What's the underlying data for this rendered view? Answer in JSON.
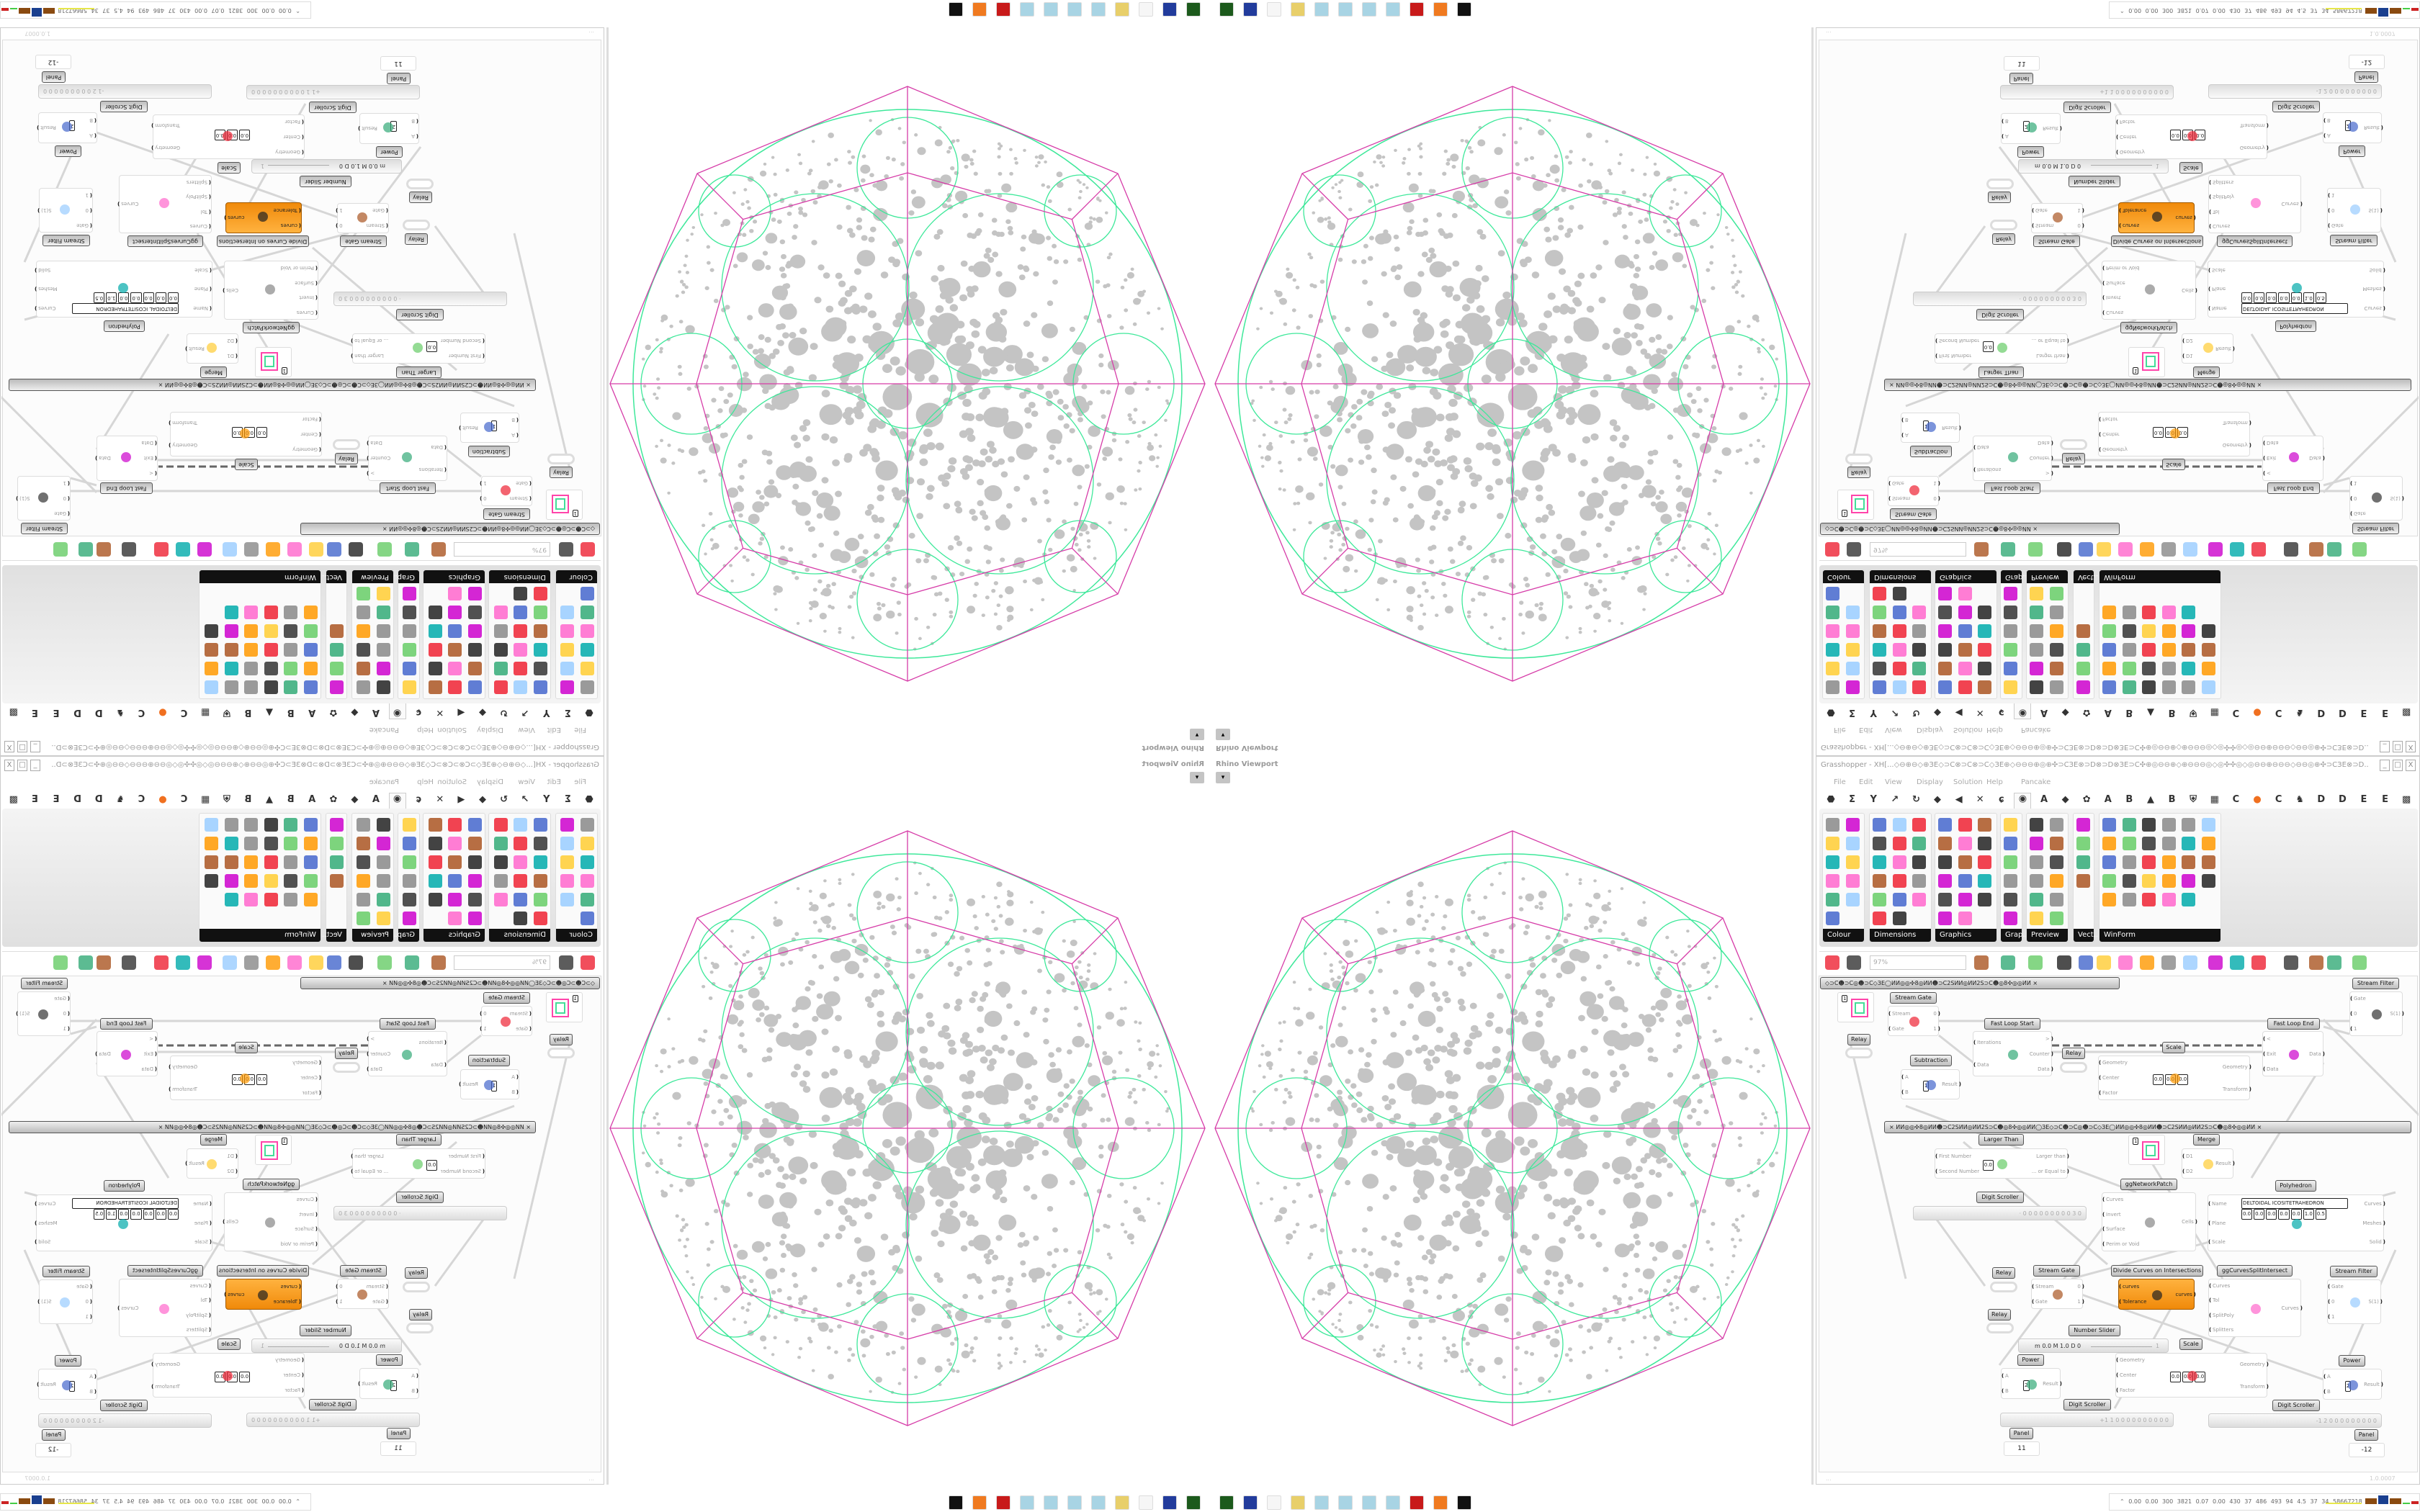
{
  "viewport": {
    "title": "Rhino Viewport",
    "dropdown_icon": "triangle-down"
  },
  "grasshopper": {
    "title": "Grasshopper - XH[...◇⊖⊕⊖◇⊕ЗЕ◇⊃C⊗⊃C⊗⊃C◇ЗЕ⊕◇⊖⊖⊖⊕◎⊕✣⊃CЗЕ⊗⊃D⊗⊃D⊗ЗЕ⊃C✣⊕◎⊖⊖⊕◇⊕⊖⊖⊖◎◇◎✣✣◎◇◎⊖⊖⊕⊖⊖⊖◇⊖⊖◎⊕✣⊃CЗЕ⊗⊃D...",
    "window_buttons": [
      "_",
      "□",
      "X"
    ],
    "menu": [
      "File",
      "Edit",
      "View",
      "Display",
      "Solution",
      "Help",
      "Pancake"
    ],
    "tabs": [
      "⬣",
      "Σ",
      "Y",
      "↗",
      "↻",
      "◆",
      "◀",
      "✕",
      "ɕ",
      "◉",
      "A",
      "◆",
      "✿",
      "A",
      "B",
      "▲",
      "B",
      "⛨",
      "▦",
      "C",
      "●",
      "C",
      "♞",
      "D",
      "D",
      "E",
      "E",
      "▩"
    ],
    "palette": [
      {
        "label": "Colour"
      },
      {
        "label": "Dimensions"
      },
      {
        "label": "Graphics"
      },
      {
        "label": "Grap..."
      },
      {
        "label": "Preview"
      },
      {
        "label": "Vect..."
      },
      {
        "label": "WinForm"
      }
    ],
    "toolbar": {
      "zoom": "97%"
    },
    "canvas": {
      "groups": [
        "◇⊃C☻⊃C◎☻⊃C◇ЗЕ◯ИИ◎◎✣8◎ИИ☻⊃C2SИИ◎ИИ2S⊃C☻◎8✣◎◎ИИ     ×",
        "×        ИИ◎◎✣8◎ИИ☻⊃C2SИИ◎ИИ2S⊃C☻◎8✣◎◎ИИ◯ЗЕ◇⊃C☻⊃C◎☻⊃C◇ЗЕ◯ИИ◎◎✣8◎ИИ☻⊃C2SИИ◎ИИ2S⊃C☻◎8✣◎◎ИИ        ×"
      ],
      "nodes": [
        {
          "label": "Stream Gate",
          "inputs": [
            "Stream",
            "Gate"
          ],
          "outputs": [
            "0",
            "1"
          ]
        },
        {
          "label": "Fast Loop Start",
          "inputs": [
            "Iterations",
            "Data"
          ],
          "outputs": [
            ">",
            "Counter",
            "Data"
          ]
        },
        {
          "label": "Subtraction",
          "inputs": [
            "A",
            "B"
          ],
          "outputs": [
            "Result"
          ],
          "params": [
            "1"
          ]
        },
        {
          "label": "Scale",
          "inputs": [
            "Geometry",
            "Center",
            "Factor"
          ],
          "outputs": [
            "Geometry",
            "Transform"
          ],
          "params": [
            "0.0",
            "0.0",
            "0.0"
          ]
        },
        {
          "label": "Fast Loop End",
          "inputs": [
            "<",
            "Exit",
            "Data"
          ],
          "outputs": [
            "Data"
          ]
        },
        {
          "label": "Stream Filter",
          "inputs": [
            "Gate",
            "0",
            "1"
          ],
          "outputs": [
            "S(1)"
          ]
        },
        {
          "label": "Larger Than",
          "inputs": [
            "First Number",
            "Second Number"
          ],
          "outputs": [
            "Larger than",
            "... or Equal to"
          ],
          "params": [
            "0.0"
          ]
        },
        {
          "label": "Merge",
          "inputs": [
            "D1",
            "D2"
          ],
          "outputs": [
            "Result"
          ]
        },
        {
          "label": "ggNetworkPatch",
          "inputs": [
            "Curves",
            "Invert",
            "Surface",
            "Perim or Void"
          ],
          "outputs": [
            "Cells"
          ]
        },
        {
          "label": "Polyhedron",
          "inputs": [
            "Name",
            "Plane",
            "Scale"
          ],
          "outputs": [
            "Curves",
            "Meshes",
            "Solid"
          ],
          "params": [
            "DELTOIDAL ICOSITETRAHEDRON",
            "0.0",
            "0.0",
            "0.0",
            "0.0",
            "0.0",
            "1.0",
            "0.5"
          ]
        },
        {
          "label": "Stream Gate",
          "inputs": [
            "Stream",
            "Gate"
          ],
          "outputs": [
            "0",
            "1"
          ]
        },
        {
          "label": "Divide Curves on Intersections",
          "inputs": [
            "curves",
            "Tolerance"
          ],
          "outputs": [
            "curves"
          ]
        },
        {
          "label": "ggCurvesSplitIntersect",
          "inputs": [
            "Curves",
            "Tol",
            "SplitPoly",
            "Splitters"
          ],
          "outputs": [
            "Curves"
          ]
        },
        {
          "label": "Stream Filter",
          "inputs": [
            "Gate",
            "0",
            "1"
          ],
          "outputs": [
            "S(1)"
          ]
        },
        {
          "label": "Scale",
          "inputs": [
            "Geometry",
            "Center",
            "Factor"
          ],
          "outputs": [
            "Geometry",
            "Transform"
          ],
          "params": [
            "0.0",
            "0.0",
            "0.0"
          ]
        },
        {
          "label": "Power",
          "inputs": [
            "A",
            "B"
          ],
          "outputs": [
            "Result"
          ],
          "params": [
            "2"
          ]
        },
        {
          "label": "Power",
          "inputs": [
            "A",
            "B"
          ],
          "outputs": [
            "Result"
          ],
          "params": [
            "2"
          ]
        }
      ],
      "relays": [
        "Relay",
        "Relay",
        "Relay",
        "Relay"
      ],
      "circle_params": [
        "1",
        "1"
      ],
      "scrollers": [
        {
          "label": "Digit Scroller",
          "value": "· 0 0 0 0 0 0 0 0 0 3 0"
        },
        {
          "label": "Digit Scroller",
          "value": "+1 1 0 0 0 0 0 0 0 0 0 0"
        },
        {
          "label": "Digit Scroller",
          "value": "-1 2 0 0 0 0 0 0 0 0 0"
        }
      ],
      "slider": {
        "label": "Number Slider",
        "text": "m 0.0 M 1.0 D 0",
        "value": "1"
      },
      "panels": [
        {
          "label": "Panel",
          "value": "11"
        },
        {
          "label": "Panel",
          "value": "-12"
        }
      ]
    },
    "status": {
      "left": "...",
      "right": "1.0.0007"
    }
  },
  "taskbar": {
    "icons": [
      "green-drive",
      "floppy-64",
      "blank",
      "folder",
      "notepad",
      "notepad",
      "notepad",
      "notepad",
      "red-app",
      "firefox",
      "inkscape"
    ],
    "stats": "0.00 0.00 300 3821 0.07 0.00 430 37 486 493 94 4.5 37 34 58667218"
  },
  "colors": {
    "accent_orange": "#f39a1c",
    "wire": "#d0d0d0",
    "polyhedron_edges": "#d63ca8",
    "circle_packing": "#3ee89a",
    "holes": "#c4c4c4"
  }
}
